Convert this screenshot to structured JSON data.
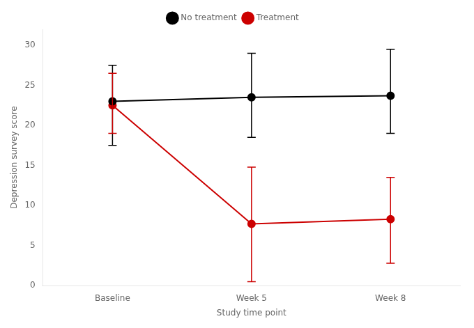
{
  "chart_data": {
    "type": "line",
    "x_label": "Study time point",
    "y_label": "Depression survey score",
    "categories": [
      "Baseline",
      "Week 5",
      "Week 8"
    ],
    "series": [
      {
        "name": "No treatment",
        "color": "#000000",
        "marker": "circle",
        "values": [
          23.0,
          23.5,
          23.7
        ],
        "error_low": [
          17.5,
          18.5,
          19.0
        ],
        "error_high": [
          27.5,
          29.0,
          29.5
        ]
      },
      {
        "name": "Treatment",
        "color": "#cc0000",
        "marker": "circle",
        "values": [
          22.5,
          7.7,
          8.3
        ],
        "error_low": [
          19.0,
          0.5,
          2.8
        ],
        "error_high": [
          26.5,
          14.8,
          13.5
        ]
      }
    ],
    "ylim": [
      0,
      32
    ],
    "yticks": [
      0,
      5,
      10,
      15,
      20,
      25,
      30
    ],
    "grid": false,
    "legend": "top"
  }
}
